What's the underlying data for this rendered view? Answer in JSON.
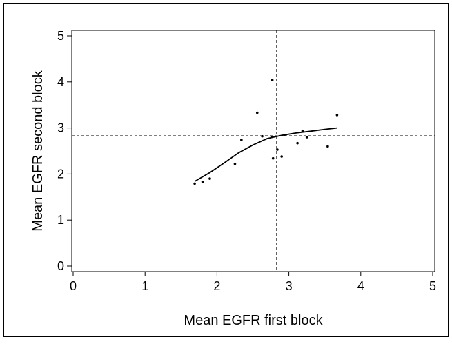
{
  "chart_data": {
    "type": "scatter",
    "title": "",
    "xlabel": "Mean EGFR first block",
    "ylabel": "Mean EGFR second block",
    "xlim": [
      0,
      5
    ],
    "ylim": [
      0,
      5
    ],
    "xticks": [
      0,
      1,
      2,
      3,
      4,
      5
    ],
    "yticks": [
      0,
      1,
      2,
      3,
      4,
      5
    ],
    "grid": false,
    "reference_lines": {
      "vertical_x": 2.83,
      "horizontal_y": 2.83,
      "style": "dashed"
    },
    "points": [
      {
        "x": 1.69,
        "y": 1.79
      },
      {
        "x": 1.8,
        "y": 1.83
      },
      {
        "x": 1.9,
        "y": 1.9
      },
      {
        "x": 2.25,
        "y": 2.22
      },
      {
        "x": 2.34,
        "y": 2.74
      },
      {
        "x": 2.56,
        "y": 3.33
      },
      {
        "x": 2.63,
        "y": 2.82
      },
      {
        "x": 2.76,
        "y": 2.81
      },
      {
        "x": 2.77,
        "y": 4.04
      },
      {
        "x": 2.78,
        "y": 2.34
      },
      {
        "x": 2.84,
        "y": 2.53
      },
      {
        "x": 2.9,
        "y": 2.38
      },
      {
        "x": 3.12,
        "y": 2.67
      },
      {
        "x": 3.19,
        "y": 2.93
      },
      {
        "x": 3.25,
        "y": 2.8
      },
      {
        "x": 3.54,
        "y": 2.6
      },
      {
        "x": 3.67,
        "y": 3.28
      }
    ],
    "smooth_curve": [
      {
        "x": 1.69,
        "y": 1.84
      },
      {
        "x": 1.9,
        "y": 2.03
      },
      {
        "x": 2.1,
        "y": 2.24
      },
      {
        "x": 2.3,
        "y": 2.46
      },
      {
        "x": 2.5,
        "y": 2.63
      },
      {
        "x": 2.7,
        "y": 2.77
      },
      {
        "x": 2.9,
        "y": 2.84
      },
      {
        "x": 3.1,
        "y": 2.89
      },
      {
        "x": 3.3,
        "y": 2.93
      },
      {
        "x": 3.5,
        "y": 2.97
      },
      {
        "x": 3.67,
        "y": 3.0
      }
    ],
    "colors": {
      "points": "#000000",
      "curve": "#000000",
      "axes": "#000000",
      "frame": "#000000"
    }
  }
}
